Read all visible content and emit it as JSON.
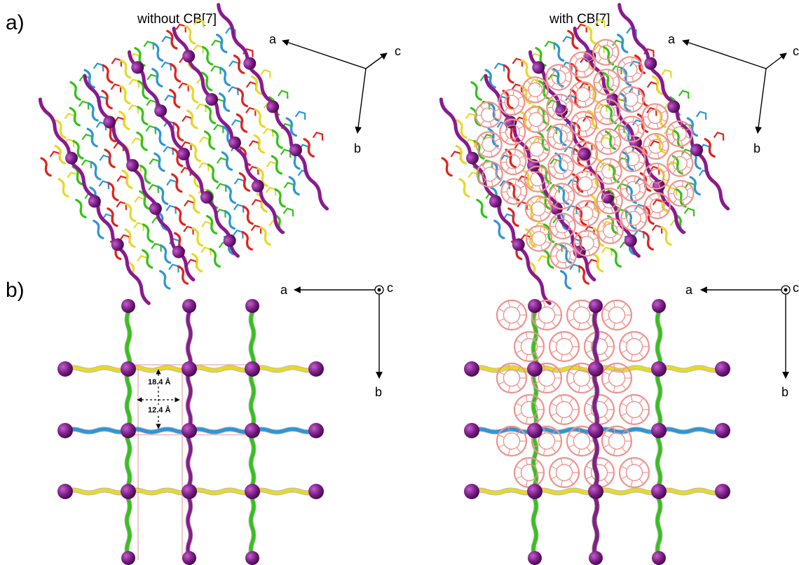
{
  "panels": {
    "a_label": "a)",
    "b_label": "b)"
  },
  "columns": {
    "left_title": "without CB[7]",
    "right_title": "with CB[7]"
  },
  "axes": {
    "a": "a",
    "b": "b",
    "c": "c"
  },
  "dimensions": {
    "vertical": "18.4 Å",
    "horizontal": "12.4 Å"
  },
  "colors": {
    "metal_node": "#7b1f86",
    "green_linker": "#34c21b",
    "yellow_linker": "#e6d92a",
    "blue_linker": "#2f95d6",
    "purple_linker": "#8a1a8f",
    "red_linker": "#e0231d",
    "cb7": "#f0928e",
    "unit_cell": "#e8a6a6"
  },
  "icons": [
    "axis-arrow-icon",
    "out-of-plane-c-icon"
  ]
}
